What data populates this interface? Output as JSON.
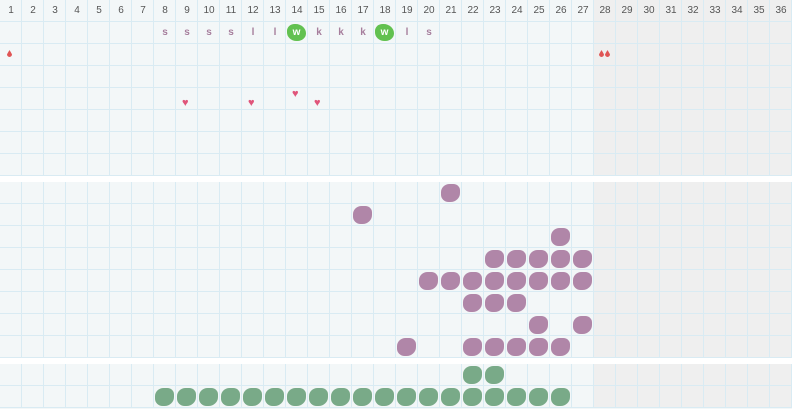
{
  "columns": [
    1,
    2,
    3,
    4,
    5,
    6,
    7,
    8,
    9,
    10,
    11,
    12,
    13,
    14,
    15,
    16,
    17,
    18,
    19,
    20,
    21,
    22,
    23,
    24,
    25,
    26,
    27,
    28,
    29,
    30,
    31,
    32,
    33,
    34,
    35,
    36
  ],
  "past_from_column": 28,
  "colors": {
    "purple": "#b086a8",
    "green": "#79aa88",
    "highlight": "#62c150",
    "drop": "#e05555",
    "heart": "#e0557a",
    "grid": "#d9ebf3",
    "shaded": "#efefef"
  },
  "letters": [
    {
      "col": 8,
      "t": "s"
    },
    {
      "col": 9,
      "t": "s"
    },
    {
      "col": 10,
      "t": "s"
    },
    {
      "col": 11,
      "t": "s"
    },
    {
      "col": 12,
      "t": "l"
    },
    {
      "col": 13,
      "t": "l"
    },
    {
      "col": 14,
      "t": "w",
      "highlight": true
    },
    {
      "col": 15,
      "t": "k"
    },
    {
      "col": 16,
      "t": "k"
    },
    {
      "col": 17,
      "t": "k"
    },
    {
      "col": 18,
      "t": "w",
      "highlight": true
    },
    {
      "col": 19,
      "t": "l"
    },
    {
      "col": 20,
      "t": "s"
    }
  ],
  "drops": [
    {
      "col": 1,
      "count": 1,
      "icon": "drop-icon"
    },
    {
      "col": 28,
      "count": 2,
      "icon": "drop-icon"
    }
  ],
  "hearts": [
    {
      "col": 9,
      "raised": false
    },
    {
      "col": 12,
      "raised": false
    },
    {
      "col": 14,
      "raised": true
    },
    {
      "col": 15,
      "raised": false
    }
  ],
  "purple_rows": [
    [
      21
    ],
    [
      17
    ],
    [
      26
    ],
    [
      23,
      24,
      25,
      26,
      27
    ],
    [
      20,
      21,
      22,
      23,
      24,
      25,
      26,
      27
    ],
    [
      22,
      23,
      24
    ],
    [
      25,
      27
    ],
    [
      19,
      22,
      23,
      24,
      25,
      26
    ]
  ],
  "green_rows": [
    [
      22,
      23
    ],
    [
      8,
      9,
      10,
      11,
      12,
      13,
      14,
      15,
      16,
      17,
      18,
      19,
      20,
      21,
      22,
      23,
      24,
      25,
      26
    ]
  ]
}
